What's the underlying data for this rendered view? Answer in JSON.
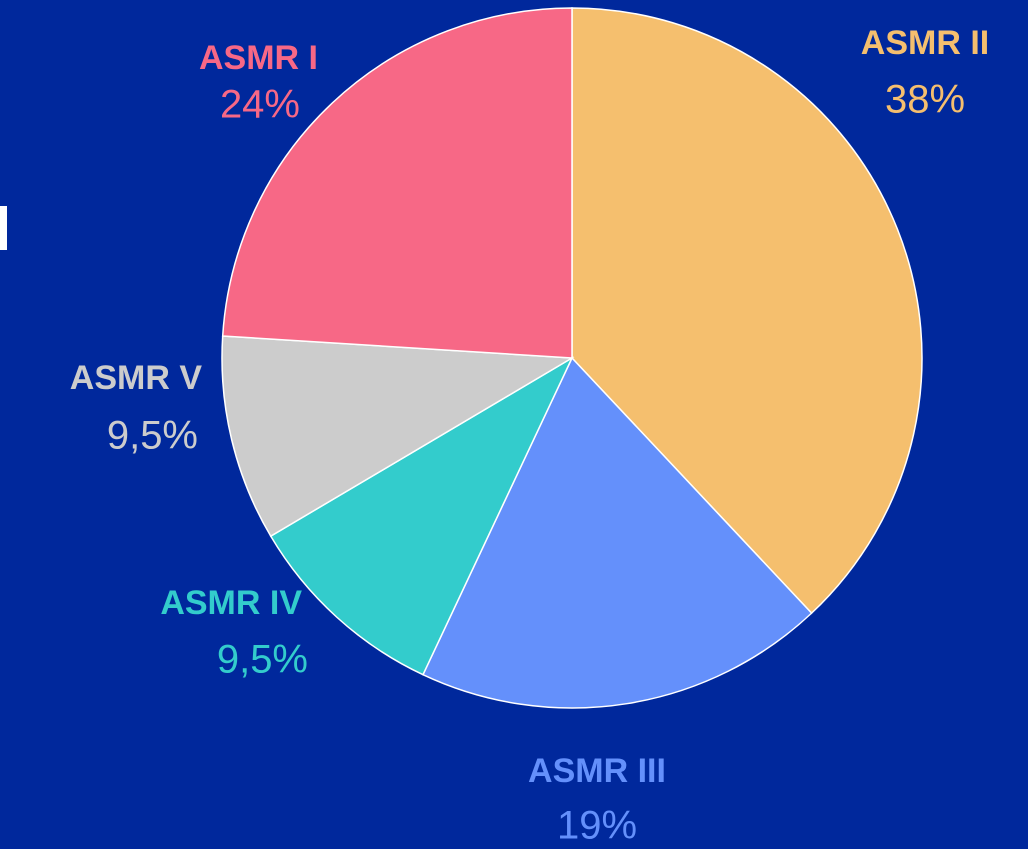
{
  "chart_data": {
    "type": "pie",
    "categories": [
      "ASMR II",
      "ASMR III",
      "ASMR IV",
      "ASMR V",
      "ASMR I"
    ],
    "values": [
      38,
      19,
      9.5,
      9.5,
      24
    ],
    "value_labels": [
      "38%",
      "19%",
      "9,5%",
      "9,5%",
      "24%"
    ],
    "colors": [
      "#f5bf6e",
      "#6490fb",
      "#33cccc",
      "#cccccc",
      "#f76886"
    ]
  }
}
